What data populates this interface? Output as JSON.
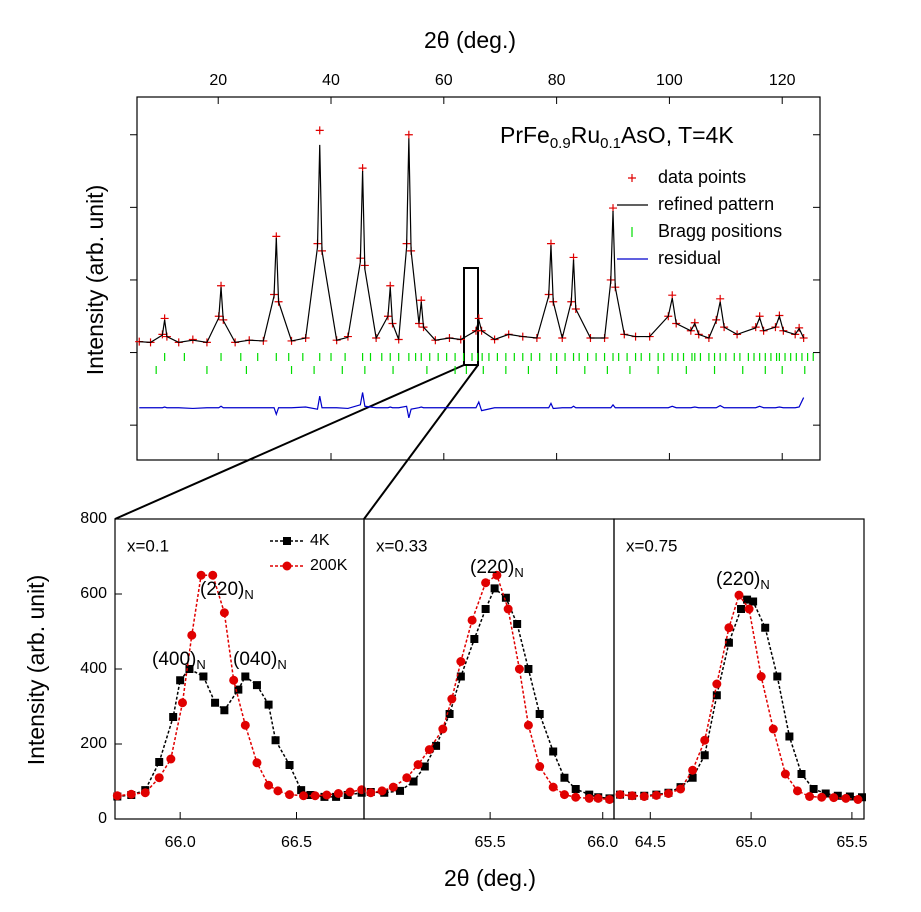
{
  "chart_data": [
    {
      "type": "line",
      "title_parts": [
        "PrFe",
        "0.9",
        "Ru",
        "0.1",
        "AsO, T=4K"
      ],
      "xlabel": "2θ (deg.)",
      "ylabel": "Intensity (arb. unit)",
      "xlim": [
        5.6,
        126.7
      ],
      "xticks": [
        20,
        40,
        60,
        80,
        100,
        120
      ],
      "ylim": [
        -1.48,
        3.52
      ],
      "yticks": [
        -1,
        0,
        1,
        2,
        3
      ],
      "x": [
        6,
        8,
        10.1,
        10.5,
        10.9,
        13,
        15.5,
        18,
        20.1,
        20.5,
        20.9,
        23,
        25.5,
        28,
        29.9,
        30.3,
        30.7,
        33,
        35.5,
        37.6,
        38,
        38.4,
        41,
        43,
        45.2,
        45.6,
        46,
        48,
        50.1,
        50.5,
        50.9,
        52,
        53.4,
        53.8,
        54.2,
        55.6,
        56,
        56.4,
        58.5,
        61,
        63,
        65.7,
        66.2,
        66.7,
        69,
        71.5,
        74,
        76.5,
        78.6,
        79,
        79.4,
        81,
        82.6,
        83,
        83.4,
        86,
        88.5,
        89.6,
        90,
        90.4,
        92,
        94,
        96.5,
        99.8,
        100.5,
        101.2,
        103.8,
        104.5,
        105.2,
        107,
        108.3,
        109,
        109.7,
        112,
        115.3,
        116,
        116.7,
        118.8,
        119.5,
        120.2,
        122.3,
        123,
        123.8
      ],
      "series": [
        {
          "name": "data points",
          "color": "#e00000",
          "marker": "cross",
          "line": false,
          "values": [
            0.15,
            0.14,
            0.25,
            0.47,
            0.22,
            0.14,
            0.18,
            0.14,
            0.5,
            0.92,
            0.45,
            0.14,
            0.17,
            0.16,
            0.8,
            1.6,
            0.7,
            0.16,
            0.2,
            1.5,
            3.06,
            1.4,
            0.17,
            0.22,
            1.3,
            2.54,
            1.2,
            0.2,
            0.5,
            0.92,
            0.4,
            0.18,
            1.5,
            3.0,
            1.4,
            0.4,
            0.72,
            0.35,
            0.17,
            0.2,
            0.18,
            0.3,
            0.47,
            0.3,
            0.18,
            0.25,
            0.22,
            0.2,
            0.8,
            1.5,
            0.7,
            0.2,
            0.7,
            1.31,
            0.6,
            0.2,
            0.2,
            1.0,
            1.99,
            0.9,
            0.25,
            0.22,
            0.22,
            0.5,
            0.79,
            0.4,
            0.3,
            0.41,
            0.25,
            0.2,
            0.45,
            0.74,
            0.35,
            0.25,
            0.35,
            0.5,
            0.3,
            0.35,
            0.51,
            0.3,
            0.25,
            0.34,
            0.2
          ]
        },
        {
          "name": "refined pattern",
          "color": "#000000",
          "line": true,
          "values": [
            0.15,
            0.14,
            0.24,
            0.45,
            0.22,
            0.14,
            0.17,
            0.14,
            0.48,
            0.9,
            0.44,
            0.14,
            0.17,
            0.16,
            0.78,
            1.58,
            0.7,
            0.16,
            0.2,
            1.45,
            2.86,
            1.4,
            0.17,
            0.21,
            1.25,
            2.5,
            1.15,
            0.2,
            0.5,
            0.9,
            0.4,
            0.18,
            1.45,
            2.95,
            1.4,
            0.4,
            0.7,
            0.35,
            0.17,
            0.2,
            0.18,
            0.3,
            0.45,
            0.3,
            0.18,
            0.25,
            0.22,
            0.2,
            0.78,
            1.48,
            0.7,
            0.2,
            0.7,
            1.28,
            0.6,
            0.2,
            0.2,
            0.98,
            1.95,
            0.9,
            0.25,
            0.22,
            0.22,
            0.5,
            0.75,
            0.4,
            0.3,
            0.4,
            0.25,
            0.2,
            0.44,
            0.7,
            0.35,
            0.25,
            0.34,
            0.48,
            0.3,
            0.35,
            0.5,
            0.3,
            0.25,
            0.33,
            0.2
          ]
        },
        {
          "name": "residual",
          "color": "#0000cc",
          "line": true,
          "values": [
            -0.76,
            -0.76,
            -0.76,
            -0.75,
            -0.76,
            -0.76,
            -0.77,
            -0.76,
            -0.76,
            -0.74,
            -0.76,
            -0.76,
            -0.76,
            -0.76,
            -0.76,
            -0.85,
            -0.76,
            -0.76,
            -0.75,
            -0.78,
            -0.6,
            -0.76,
            -0.76,
            -0.77,
            -0.72,
            -0.55,
            -0.74,
            -0.76,
            -0.76,
            -0.75,
            -0.76,
            -0.76,
            -0.74,
            -0.9,
            -0.78,
            -0.76,
            -0.75,
            -0.76,
            -0.76,
            -0.76,
            -0.76,
            -0.76,
            -0.68,
            -0.8,
            -0.76,
            -0.76,
            -0.76,
            -0.76,
            -0.76,
            -0.7,
            -0.77,
            -0.76,
            -0.76,
            -0.74,
            -0.76,
            -0.76,
            -0.76,
            -0.76,
            -0.72,
            -0.76,
            -0.76,
            -0.76,
            -0.76,
            -0.76,
            -0.74,
            -0.76,
            -0.76,
            -0.75,
            -0.76,
            -0.76,
            -0.76,
            -0.73,
            -0.76,
            -0.76,
            -0.76,
            -0.74,
            -0.76,
            -0.76,
            -0.75,
            -0.76,
            -0.76,
            -0.75,
            -0.62
          ]
        }
      ],
      "bragg": {
        "name": "Bragg positions",
        "color": "#00dd00",
        "x": [
          10.5,
          14,
          20.5,
          24,
          27,
          30.3,
          32.5,
          35,
          38,
          40,
          42.5,
          45.6,
          47,
          49,
          50.5,
          52,
          53.8,
          55,
          56,
          57.5,
          59,
          60.5,
          62,
          63.5,
          65,
          66,
          66.8,
          68,
          69.5,
          71,
          72.5,
          74,
          75.5,
          77,
          79,
          80,
          81.5,
          83,
          84,
          85.5,
          87,
          88.5,
          90,
          91,
          92.5,
          94,
          95,
          96.5,
          98,
          99,
          100.5,
          101.5,
          102.5,
          104,
          104.5,
          105.5,
          107,
          108,
          109,
          110,
          111.5,
          112.5,
          114,
          115,
          116,
          117,
          118,
          119,
          119.5,
          120.5,
          121.5,
          122.5,
          123.5,
          124.5,
          125.5
        ],
        "x2": [
          9,
          18,
          25,
          33,
          37,
          42,
          46,
          51,
          57,
          62,
          64,
          67,
          71,
          75,
          80,
          85,
          89,
          93,
          98,
          103,
          108,
          113,
          117,
          120,
          124
        ]
      }
    },
    {
      "type": "line",
      "label": "x=0.1",
      "xlabel": "2θ (deg.)",
      "ylabel": "Intensity (arb. unit)",
      "xlim": [
        65.72,
        66.79
      ],
      "xticks": [
        {
          "value": 66,
          "label": "66.0"
        },
        66.5
      ],
      "ylim": [
        0,
        800
      ],
      "yticks": [
        0,
        200,
        400,
        600,
        800
      ],
      "annotations": [
        {
          "text": "(220)",
          "sub": "N"
        },
        {
          "text": "(400)",
          "sub": "N"
        },
        {
          "text": "(040)",
          "sub": "N"
        }
      ],
      "series": [
        {
          "name": "4K",
          "color": "#000000",
          "marker": "square",
          "dash": true,
          "x": [
            65.73,
            65.79,
            65.85,
            65.91,
            65.97,
            66.0,
            66.04,
            66.1,
            66.15,
            66.19,
            66.25,
            66.28,
            66.33,
            66.38,
            66.41,
            66.47,
            66.52,
            66.56,
            66.62,
            66.67,
            66.72,
            66.78
          ],
          "values": [
            60,
            64,
            77,
            152,
            272,
            370,
            400,
            380,
            310,
            290,
            345,
            380,
            357,
            305,
            210,
            144,
            77,
            64,
            59,
            59,
            64,
            70
          ]
        },
        {
          "name": "200K",
          "color": "#e00000",
          "marker": "circle",
          "dash": true,
          "x": [
            65.73,
            65.79,
            65.85,
            65.91,
            65.96,
            66.01,
            66.05,
            66.09,
            66.14,
            66.19,
            66.23,
            66.28,
            66.33,
            66.38,
            66.42,
            66.47,
            66.53,
            66.58,
            66.63,
            66.68,
            66.73,
            66.78
          ],
          "values": [
            62,
            66,
            70,
            110,
            160,
            310,
            490,
            650,
            650,
            550,
            370,
            250,
            150,
            90,
            75,
            65,
            62,
            62,
            64,
            68,
            72,
            78
          ]
        }
      ]
    },
    {
      "type": "line",
      "label": "x=0.33",
      "xlim": [
        64.94,
        66.05
      ],
      "xticks": [
        65.5,
        {
          "value": 66,
          "label": "66.0"
        }
      ],
      "ylim": [
        0,
        800
      ],
      "annotations": [
        {
          "text": "(220)",
          "sub": "N"
        }
      ],
      "series": [
        {
          "color": "#000000",
          "marker": "square",
          "dash": true,
          "x": [
            64.97,
            65.03,
            65.1,
            65.16,
            65.21,
            65.26,
            65.32,
            65.37,
            65.43,
            65.48,
            65.52,
            65.57,
            65.62,
            65.67,
            65.72,
            65.78,
            65.83,
            65.88,
            65.94,
            65.98,
            66.03
          ],
          "values": [
            72,
            70,
            75,
            100,
            140,
            195,
            280,
            380,
            480,
            560,
            615,
            590,
            520,
            400,
            280,
            180,
            110,
            80,
            65,
            58,
            55
          ]
        },
        {
          "color": "#e00000",
          "marker": "circle",
          "dash": true,
          "x": [
            64.97,
            65.02,
            65.07,
            65.13,
            65.18,
            65.23,
            65.29,
            65.33,
            65.37,
            65.42,
            65.48,
            65.53,
            65.58,
            65.63,
            65.67,
            65.72,
            65.78,
            65.83,
            65.88,
            65.94,
            65.98,
            66.03
          ],
          "values": [
            70,
            75,
            85,
            110,
            145,
            185,
            240,
            320,
            420,
            530,
            630,
            650,
            560,
            400,
            250,
            140,
            85,
            65,
            58,
            55,
            55,
            52
          ]
        }
      ]
    },
    {
      "type": "line",
      "label": "x=0.75",
      "xlim": [
        64.32,
        65.56
      ],
      "xticks": [
        64.5,
        {
          "value": 65,
          "label": "65.0"
        },
        65.5
      ],
      "ylim": [
        0,
        800
      ],
      "annotations": [
        {
          "text": "(220)",
          "sub": "N"
        }
      ],
      "series": [
        {
          "color": "#000000",
          "marker": "square",
          "dash": true,
          "x": [
            64.35,
            64.41,
            64.47,
            64.53,
            64.59,
            64.65,
            64.71,
            64.77,
            64.83,
            64.89,
            64.95,
            64.98,
            65.01,
            65.07,
            65.13,
            65.19,
            65.25,
            65.31,
            65.37,
            65.43,
            65.49,
            65.55
          ],
          "values": [
            65,
            62,
            62,
            65,
            70,
            85,
            110,
            170,
            330,
            470,
            560,
            585,
            580,
            510,
            380,
            220,
            120,
            80,
            68,
            62,
            60,
            58
          ]
        },
        {
          "color": "#e00000",
          "marker": "circle",
          "dash": true,
          "x": [
            64.35,
            64.41,
            64.47,
            64.53,
            64.59,
            64.65,
            64.71,
            64.77,
            64.83,
            64.89,
            64.94,
            64.99,
            65.05,
            65.11,
            65.17,
            65.23,
            65.29,
            65.35,
            65.41,
            65.47,
            65.53
          ],
          "values": [
            65,
            62,
            60,
            63,
            68,
            80,
            130,
            210,
            360,
            510,
            597,
            560,
            380,
            240,
            120,
            75,
            60,
            58,
            57,
            55,
            52
          ]
        }
      ]
    }
  ]
}
